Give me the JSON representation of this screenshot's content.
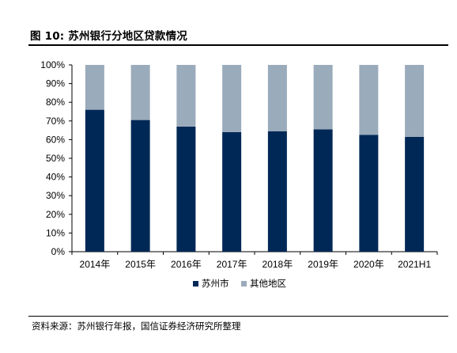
{
  "figure": {
    "title": "图 10:  苏州银行分地区贷款情况",
    "source": "资料来源：苏州银行年报，国信证券经济研究所整理"
  },
  "chart_data": {
    "type": "bar",
    "stacked": true,
    "categories": [
      "2014年",
      "2015年",
      "2016年",
      "2017年",
      "2018年",
      "2019年",
      "2020年",
      "2021H1"
    ],
    "series": [
      {
        "name": "苏州市",
        "color": "#002856",
        "values": [
          76,
          70.5,
          67,
          64,
          64.5,
          65.5,
          62.5,
          61.5
        ]
      },
      {
        "name": "其他地区",
        "color": "#9aabbb",
        "values": [
          24,
          29.5,
          33,
          36,
          35.5,
          34.5,
          37.5,
          38.5
        ]
      }
    ],
    "ylim": [
      0,
      100
    ],
    "yticks": [
      "0%",
      "10%",
      "20%",
      "30%",
      "40%",
      "50%",
      "60%",
      "70%",
      "80%",
      "90%",
      "100%"
    ],
    "legend_position": "bottom",
    "grid": false
  }
}
